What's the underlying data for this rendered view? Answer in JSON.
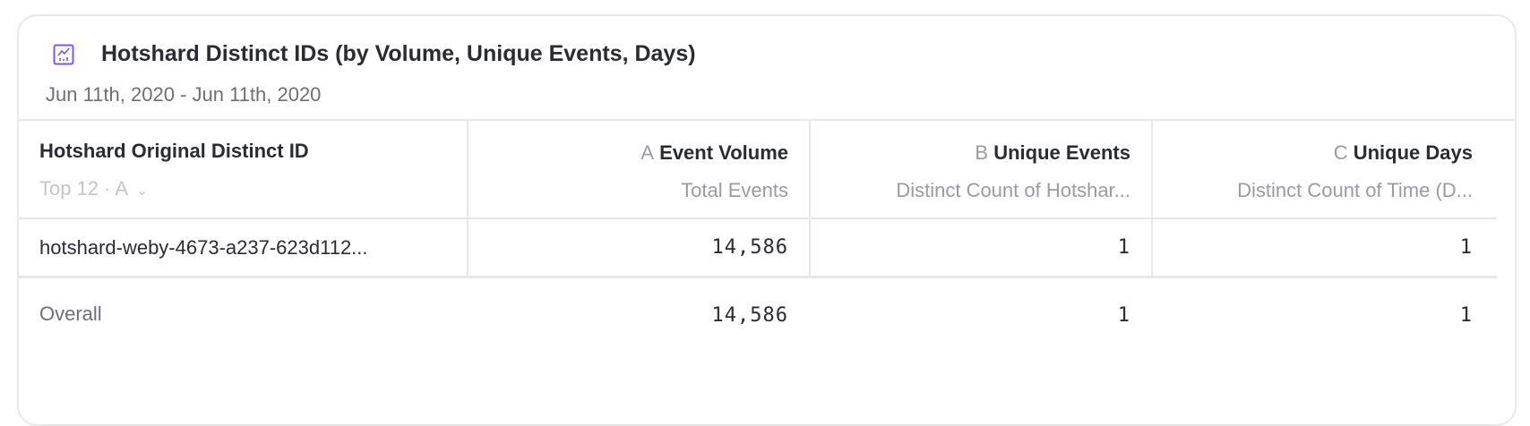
{
  "header": {
    "icon": "line-chart-icon",
    "title": "Hotshard Distinct IDs (by Volume, Unique Events, Days)",
    "date_range": "Jun 11th, 2020 - Jun 11th, 2020",
    "accent": "#7856ff"
  },
  "table": {
    "segment_column": {
      "title": "Hotshard Original Distinct ID",
      "control": "Top 12 · A"
    },
    "columns": [
      {
        "letter": "A",
        "title": "Event Volume",
        "subtitle": "Total Events"
      },
      {
        "letter": "B",
        "title": "Unique Events",
        "subtitle": "Distinct Count of Hotshar..."
      },
      {
        "letter": "C",
        "title": "Unique Days",
        "subtitle": "Distinct Count of Time (D..."
      }
    ],
    "rows": [
      {
        "label": "hotshard-weby-4673-a237-623d112...",
        "values": [
          "14,586",
          "1",
          "1"
        ]
      }
    ],
    "overall": {
      "label": "Overall",
      "values": [
        "14,586",
        "1",
        "1"
      ]
    }
  }
}
